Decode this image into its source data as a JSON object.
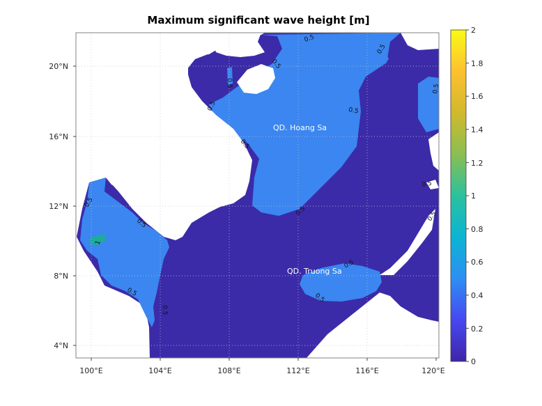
{
  "map": {
    "title": "Maximum significant wave height [m]",
    "x_ticks": [
      "100°E",
      "104°E",
      "108°E",
      "112°E",
      "116°E",
      "120°E"
    ],
    "y_ticks": [
      "20°N",
      "16°N",
      "12°N",
      "8°N",
      "4°N"
    ],
    "colorbar": {
      "ticks": [
        "2",
        "1.8",
        "1.6",
        "1.4",
        "1.2",
        "1",
        "0.8",
        "0.6",
        "0.4",
        "0.2",
        "0"
      ],
      "colors": [
        "#3e26a8",
        "#4748f0",
        "#2d8ff3",
        "#0bb4d3",
        "#2bc19e",
        "#8bbe52",
        "#d1b92c",
        "#fdc030",
        "#f9fb15"
      ]
    },
    "regions": {
      "hoang_sa": "QD. Hoang Sa",
      "truong_sa": "QD. Truong Sa"
    },
    "contour_labels": {
      "c1": "0.5",
      "c2": "0.5",
      "c3": "0.5",
      "c4": "0.5",
      "c5": "0.5",
      "c6": "0.5",
      "c7": "0.5",
      "c8": "0.5",
      "c9": "0.5",
      "c10": "0.5",
      "c11": "0.5",
      "c12": "0.5",
      "c13": "0.5",
      "c14": "0.5",
      "c15": "0.5",
      "c16": "0.5",
      "c17": "1"
    },
    "colors": {
      "deep_blue": "#3b2ba8",
      "mid_blue": "#3b86f0",
      "teal": "#1fa99f",
      "land": "#ffffff"
    }
  }
}
